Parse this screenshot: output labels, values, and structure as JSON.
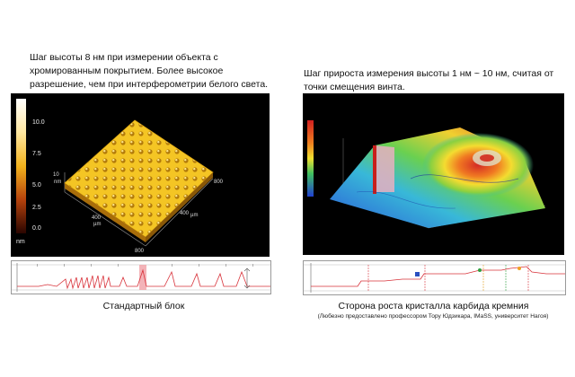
{
  "left": {
    "description": "Шаг высоты 8 нм при измерении объекта с хромированным  покрытием. Более высокое разрешение, чем при интерферометрии белого света.",
    "colorbar_ticks": [
      "10.0",
      "7.5",
      "5.0",
      "2.5",
      "0.0"
    ],
    "colorbar_unit": "nm",
    "axis_labels": [
      "10",
      "nm",
      "400",
      "µm",
      "400",
      "µm",
      "800",
      "800"
    ],
    "caption": "Стандартный блок"
  },
  "right": {
    "description": "Шаг прироста измерения высоты 1 нм ~ 10 нм, считая от точки смещения винта.",
    "caption": "Сторона роста кристалла карбида кремния",
    "credit": "(Любезно предоставлено профессором Тору Юдзикара, IMaSS, университет Нагоя)"
  },
  "colors": {
    "background": "#ffffff",
    "panel": "#000000",
    "surface_yellow": "#f2c21c",
    "profile_line": "#d8323a"
  }
}
